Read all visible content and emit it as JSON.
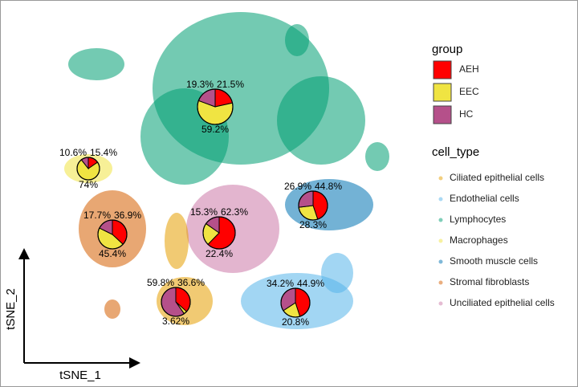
{
  "chart_data": {
    "type": "pie",
    "x_label": "tSNE_1",
    "y_label": "tSNE_2",
    "group_legend": {
      "title": "group",
      "series": [
        {
          "name": "AEH",
          "color": "#ff0000"
        },
        {
          "name": "EEC",
          "color": "#f0e442"
        },
        {
          "name": "HC",
          "color": "#b5508a"
        }
      ]
    },
    "cell_type_legend": {
      "title": "cell_type",
      "series": [
        {
          "name": "Ciliated epithelial cells",
          "color": "#e69f00"
        },
        {
          "name": "Endothelial cells",
          "color": "#56b4e9"
        },
        {
          "name": "Lymphocytes",
          "color": "#009e73"
        },
        {
          "name": "Macrophages",
          "color": "#f0e442"
        },
        {
          "name": "Smooth muscle cells",
          "color": "#0072b2"
        },
        {
          "name": "Stromal fibroblasts",
          "color": "#d55e00"
        },
        {
          "name": "Unciliated epithelial cells",
          "color": "#cc79a7"
        }
      ]
    },
    "pies": [
      {
        "values": [
          21.5,
          59.2,
          19.3
        ],
        "value_labels": [
          "21.5%",
          "59.2%",
          "19.3%"
        ]
      },
      {
        "values": [
          15.4,
          74,
          10.6
        ],
        "value_labels": [
          "15.4%",
          "74%",
          "10.6%"
        ]
      },
      {
        "values": [
          36.9,
          45.4,
          17.7
        ],
        "value_labels": [
          "36.9%",
          "45.4%",
          "17.7%"
        ]
      },
      {
        "values": [
          62.3,
          22.4,
          15.3
        ],
        "value_labels": [
          "62.3%",
          "22.4%",
          "15.3%"
        ]
      },
      {
        "values": [
          44.8,
          28.3,
          26.9
        ],
        "value_labels": [
          "44.8%",
          "28.3%",
          "26.9%"
        ]
      },
      {
        "values": [
          44.9,
          20.8,
          34.2
        ],
        "value_labels": [
          "44.9%",
          "20.8%",
          "34.2%"
        ]
      },
      {
        "values": [
          36.6,
          3.62,
          59.8
        ],
        "value_labels": [
          "36.6%",
          "3.62%",
          "59.8%"
        ]
      }
    ]
  }
}
